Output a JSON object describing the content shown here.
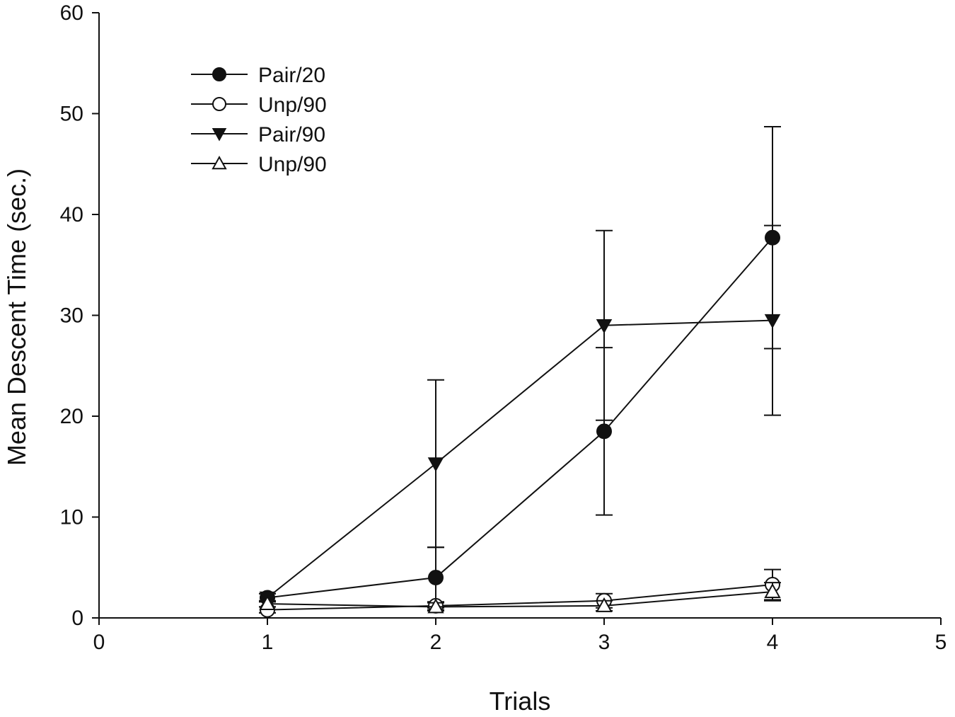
{
  "chart_data": {
    "type": "line",
    "title": "",
    "xlabel": "Trials",
    "ylabel": "Mean Descent Time (sec.)",
    "xlim": [
      0,
      5
    ],
    "ylim": [
      0,
      60
    ],
    "xticks": [
      0,
      1,
      2,
      3,
      4,
      5
    ],
    "yticks": [
      0,
      10,
      20,
      30,
      40,
      50,
      60
    ],
    "grid": false,
    "legend_position": "top-left",
    "series": [
      {
        "name": "Pair/20",
        "marker": "filled-circle",
        "x": [
          1,
          2,
          3,
          4
        ],
        "y": [
          2.0,
          4.0,
          18.5,
          37.7
        ],
        "error": [
          0.4,
          3.0,
          8.3,
          11.0
        ]
      },
      {
        "name": "Unp/90",
        "marker": "open-circle",
        "x": [
          1,
          2,
          3,
          4
        ],
        "y": [
          0.8,
          1.2,
          1.7,
          3.3
        ],
        "error": [
          0.3,
          0.4,
          0.7,
          1.5
        ]
      },
      {
        "name": "Pair/90",
        "marker": "filled-triangle-down",
        "x": [
          1,
          2,
          3,
          4
        ],
        "y": [
          2.0,
          15.3,
          29.0,
          29.5
        ],
        "error": [
          0.4,
          8.3,
          9.4,
          9.4
        ]
      },
      {
        "name": "Unp/90",
        "marker": "open-triangle-up",
        "x": [
          1,
          2,
          3,
          4
        ],
        "y": [
          1.4,
          1.1,
          1.2,
          2.6
        ],
        "error": [
          0.3,
          0.4,
          0.5,
          0.9
        ]
      }
    ]
  }
}
